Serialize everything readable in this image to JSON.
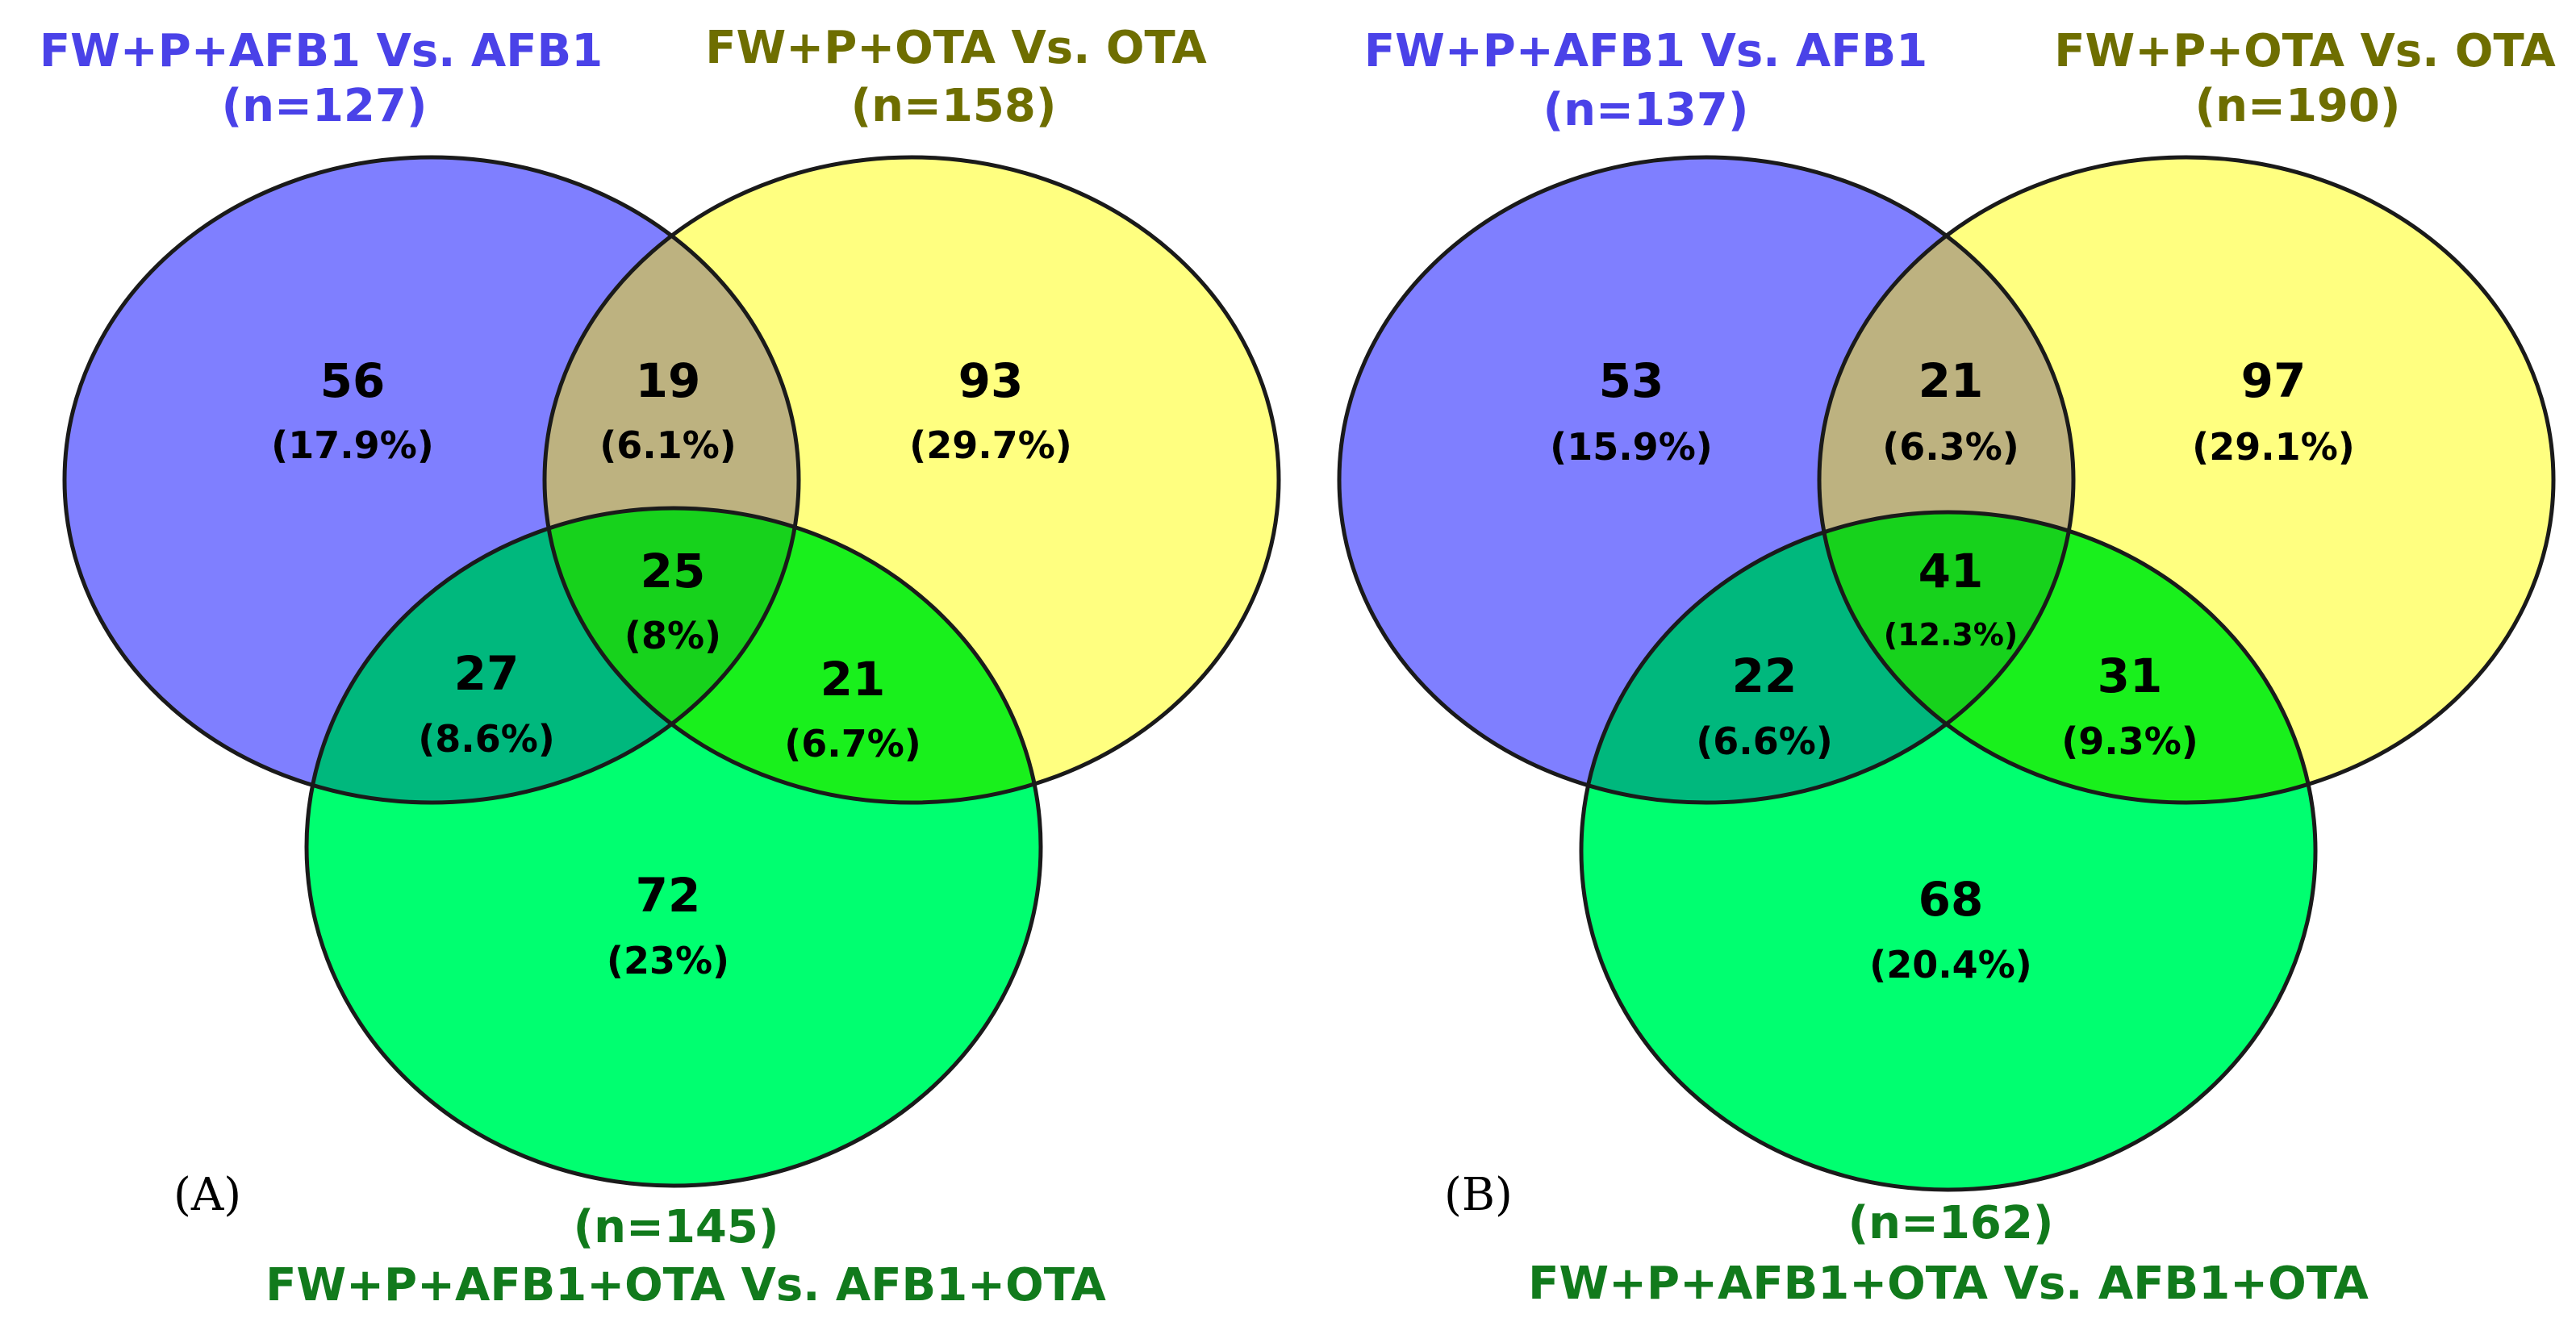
{
  "panels": [
    {
      "panel_label": "(A)",
      "set_a": {
        "title": "FW+P+AFB1 Vs. AFB1",
        "count": "(n=127)",
        "color": "#7f7fff"
      },
      "set_b": {
        "title": "FW+P+OTA Vs. OTA",
        "count": "(n=158)",
        "color": "#ffff80"
      },
      "set_c": {
        "title": "FW+P+AFB1+OTA Vs. AFB1+OTA",
        "count": "(n=145)",
        "color": "#00ff70"
      },
      "regions": {
        "a_only": {
          "value": "56",
          "percent": "(17.9%)"
        },
        "ab": {
          "value": "19",
          "percent": "(6.1%)"
        },
        "b_only": {
          "value": "93",
          "percent": "(29.7%)"
        },
        "abc": {
          "value": "25",
          "percent": "(8%)"
        },
        "ac": {
          "value": "27",
          "percent": "(8.6%)"
        },
        "bc": {
          "value": "21",
          "percent": "(6.7%)"
        },
        "c_only": {
          "value": "72",
          "percent": "(23%)"
        }
      }
    },
    {
      "panel_label": "(B)",
      "set_a": {
        "title": "FW+P+AFB1 Vs. AFB1",
        "count": "(n=137)",
        "color": "#7f7fff"
      },
      "set_b": {
        "title": "FW+P+OTA Vs. OTA",
        "count": "(n=190)",
        "color": "#ffff80"
      },
      "set_c": {
        "title": "FW+P+AFB1+OTA Vs. AFB1+OTA",
        "count": "(n=162)",
        "color": "#00ff70"
      },
      "regions": {
        "a_only": {
          "value": "53",
          "percent": "(15.9%)"
        },
        "ab": {
          "value": "21",
          "percent": "(6.3%)"
        },
        "b_only": {
          "value": "97",
          "percent": "(29.1%)"
        },
        "abc": {
          "value": "41",
          "percent": "(12.3%)"
        },
        "ac": {
          "value": "22",
          "percent": "(6.6%)"
        },
        "bc": {
          "value": "31",
          "percent": "(9.3%)"
        },
        "c_only": {
          "value": "68",
          "percent": "(20.4%)"
        }
      }
    }
  ]
}
